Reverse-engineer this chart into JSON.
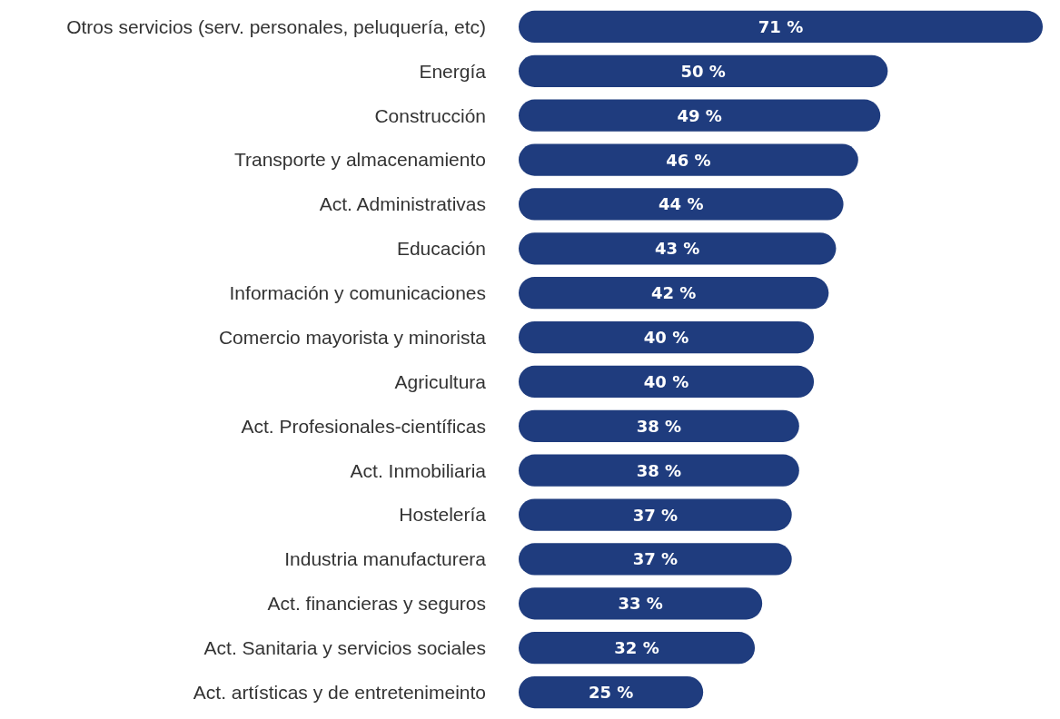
{
  "chart_data": {
    "type": "bar",
    "orientation": "horizontal",
    "color": "#1f3c7e",
    "categories": [
      "Otros servicios (serv. personales, peluquería, etc)",
      "Energía",
      "Construcción",
      "Transporte y almacenamiento",
      "Act. Administrativas",
      "Educación",
      "Información y comunicaciones",
      "Comercio mayorista y minorista",
      "Agricultura",
      "Act. Profesionales-científicas",
      "Act. Inmobiliaria",
      "Hostelería",
      "Industria manufacturera",
      "Act. financieras y seguros",
      "Act. Sanitaria y servicios sociales",
      "Act. artísticas y de entretenimeinto"
    ],
    "values": [
      71,
      50,
      49,
      46,
      44,
      43,
      42,
      40,
      40,
      38,
      38,
      37,
      37,
      33,
      32,
      25
    ],
    "value_labels": [
      "71 %",
      "50 %",
      "49 %",
      "46 %",
      "44 %",
      "43 %",
      "42 %",
      "40 %",
      "40 %",
      "38 %",
      "38 %",
      "37 %",
      "37 %",
      "33 %",
      "32 %",
      "25 %"
    ]
  }
}
